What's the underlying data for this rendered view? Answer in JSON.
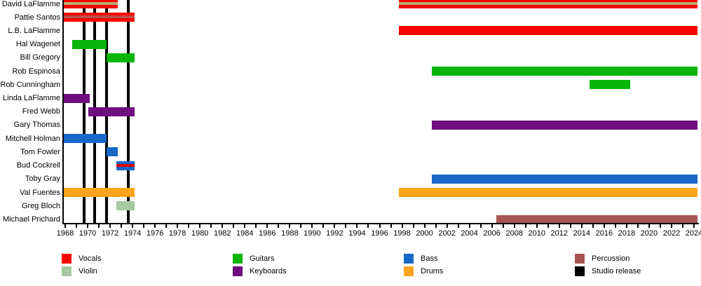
{
  "chart_data": {
    "type": "timeline",
    "description": "Band members timeline (Gantt-style) with studio release markers",
    "x_axis": {
      "min_year": 1968,
      "max_year": 2024,
      "minor_tick_step": 1,
      "label_step": 2,
      "tick_labels": [
        "1968",
        "1970",
        "1972",
        "1974",
        "1976",
        "1978",
        "1980",
        "1982",
        "1984",
        "1986",
        "1988",
        "1990",
        "1992",
        "1994",
        "1996",
        "1998",
        "2000",
        "2002",
        "2004",
        "2006",
        "2008",
        "2010",
        "2012",
        "2014",
        "2016",
        "2018",
        "2020",
        "2022",
        "2024"
      ]
    },
    "colors": {
      "vocals": "#fb0000",
      "violin": "#a6c9a1",
      "guitars": "#09b509",
      "keyboards": "#6f0c7f",
      "bass": "#1767c9",
      "drums": "#ffa41c",
      "percussion": "#a75454",
      "studio_release": "#000000",
      "vocals_violin_stripe": "#b5ab76",
      "vocals_percussion_stripe": "#c14b4b",
      "bass_vocals_stripe": "#e00000"
    },
    "members": [
      {
        "slug": "david-laflamme",
        "name": "David LaFlamme",
        "instrument": "Vocals, Violin",
        "color_key": "vocals",
        "stripe_color_key": "vocals_violin_stripe",
        "periods": [
          [
            1967.81,
            1972.68
          ],
          [
            1997.71,
            2024.3
          ]
        ]
      },
      {
        "slug": "pattie-santos",
        "name": "Pattie Santos",
        "instrument": "Vocals, Percussion",
        "color_key": "vocals",
        "stripe_color_key": "vocals_percussion_stripe",
        "periods": [
          [
            1967.81,
            1974.18
          ]
        ]
      },
      {
        "slug": "lb-laflamme",
        "name": "L.B. LaFlamme",
        "instrument": "Vocals",
        "color_key": "vocals",
        "periods": [
          [
            1997.71,
            2024.3
          ]
        ]
      },
      {
        "slug": "hal-wagenet",
        "name": "Hal Wagenet",
        "instrument": "Guitars",
        "color_key": "guitars",
        "periods": [
          [
            1968.62,
            1971.68
          ]
        ]
      },
      {
        "slug": "bill-gregory",
        "name": "Bill Gregory",
        "instrument": "Guitars",
        "color_key": "guitars",
        "periods": [
          [
            1971.68,
            1974.18
          ]
        ]
      },
      {
        "slug": "rob-espinosa",
        "name": "Rob Espinosa",
        "instrument": "Guitars",
        "color_key": "guitars",
        "periods": [
          [
            2000.64,
            2024.3
          ]
        ]
      },
      {
        "slug": "rob-cunningham",
        "name": "Rob Cunningham",
        "instrument": "Guitars",
        "color_key": "guitars",
        "periods": [
          [
            2014.69,
            2018.31
          ]
        ]
      },
      {
        "slug": "linda-laflamme",
        "name": "Linda LaFlamme",
        "instrument": "Keyboards",
        "color_key": "keyboards",
        "periods": [
          [
            1967.81,
            1970.18
          ]
        ]
      },
      {
        "slug": "fred-webb",
        "name": "Fred Webb",
        "instrument": "Keyboards",
        "color_key": "keyboards",
        "periods": [
          [
            1970.06,
            1974.18
          ]
        ]
      },
      {
        "slug": "gary-thomas",
        "name": "Gary Thomas",
        "instrument": "Keyboards",
        "color_key": "keyboards",
        "periods": [
          [
            2000.64,
            2024.3
          ]
        ]
      },
      {
        "slug": "mitchell-holman",
        "name": "Mitchell Holman",
        "instrument": "Bass",
        "color_key": "bass",
        "periods": [
          [
            1967.81,
            1971.68
          ]
        ]
      },
      {
        "slug": "tom-fowler",
        "name": "Tom Fowler",
        "instrument": "Bass",
        "color_key": "bass",
        "periods": [
          [
            1971.68,
            1972.68
          ]
        ]
      },
      {
        "slug": "bud-cockrell",
        "name": "Bud Cockrell",
        "instrument": "Bass, Vocals",
        "color_key": "bass",
        "stripe_color_key": "bass_vocals_stripe",
        "periods": [
          [
            1972.56,
            1974.18
          ]
        ]
      },
      {
        "slug": "toby-gray",
        "name": "Toby Gray",
        "instrument": "Bass",
        "color_key": "bass",
        "periods": [
          [
            2000.64,
            2024.3
          ]
        ]
      },
      {
        "slug": "val-fuentes",
        "name": "Val Fuentes",
        "instrument": "Drums",
        "color_key": "drums",
        "periods": [
          [
            1967.81,
            1974.18
          ],
          [
            1997.71,
            2024.3
          ]
        ]
      },
      {
        "slug": "greg-bloch",
        "name": "Greg Bloch",
        "instrument": "Violin",
        "color_key": "violin",
        "periods": [
          [
            1972.56,
            1974.18
          ]
        ]
      },
      {
        "slug": "michael-prichard",
        "name": "Michael Prichard",
        "instrument": "Percussion",
        "color_key": "percussion",
        "periods": [
          [
            2006.38,
            2024.3
          ]
        ]
      }
    ],
    "studio_release_years": [
      1969.7,
      1970.6,
      1971.7,
      1973.6
    ],
    "legend": {
      "columns": [
        {
          "items": [
            {
              "label": "Vocals",
              "color_key": "vocals"
            },
            {
              "label": "Violin",
              "color_key": "violin"
            }
          ]
        },
        {
          "items": [
            {
              "label": "Guitars",
              "color_key": "guitars"
            },
            {
              "label": "Keyboards",
              "color_key": "keyboards"
            }
          ]
        },
        {
          "items": [
            {
              "label": "Bass",
              "color_key": "bass"
            },
            {
              "label": "Drums",
              "color_key": "drums"
            }
          ]
        },
        {
          "items": [
            {
              "label": "Percussion",
              "color_key": "percussion"
            },
            {
              "label": "Studio release",
              "color_key": "studio_release"
            }
          ]
        }
      ]
    }
  }
}
